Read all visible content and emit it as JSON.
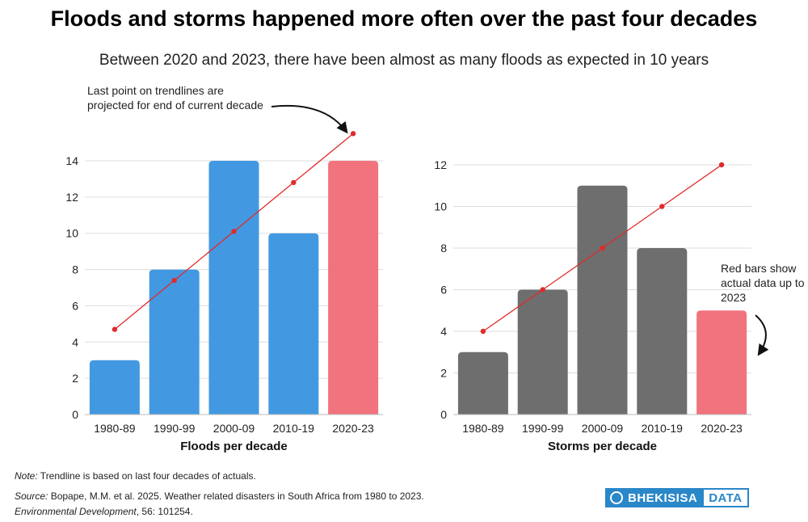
{
  "title": "Floods and storms happened more often over the past four decades",
  "subtitle": "Between 2020 and 2023, there have been almost as many floods as expected in 10 years",
  "annotations": {
    "left": "Last point on trendlines are projected for end of current decade",
    "right": "Red bars show actual data up to 2023"
  },
  "colors": {
    "floods": "#4299e1",
    "storms": "#6e6e6e",
    "partial": "#f0737e",
    "trend": "#e02b2b",
    "grid": "#dddddd"
  },
  "chart_data": [
    {
      "type": "bar",
      "xlabel": "Floods per decade",
      "categories": [
        "1980-89",
        "1990-99",
        "2000-09",
        "2010-19",
        "2020-23"
      ],
      "values": [
        3,
        8,
        14,
        10,
        14
      ],
      "trendline": [
        4.7,
        7.4,
        10.1,
        12.8,
        15.5
      ],
      "ylim": [
        0,
        14
      ],
      "yticks": [
        0,
        2,
        4,
        6,
        8,
        10,
        12,
        14
      ],
      "grid": true,
      "partial_last": true
    },
    {
      "type": "bar",
      "xlabel": "Storms per decade",
      "categories": [
        "1980-89",
        "1990-99",
        "2000-09",
        "2010-19",
        "2020-23"
      ],
      "values": [
        3,
        6,
        11,
        8,
        5
      ],
      "trendline": [
        4,
        6,
        8,
        10,
        12
      ],
      "ylim": [
        0,
        12
      ],
      "yticks": [
        0,
        2,
        4,
        6,
        8,
        10,
        12
      ],
      "grid": true,
      "partial_last": true
    }
  ],
  "footer": {
    "note_label": "Note:",
    "note_text": " Trendline is based on last four decades of actuals.",
    "source_label": "Source:",
    "source_text": " Bopape, M.M. et al. 2025. Weather related disasters in South Africa from 1980 to 2023.",
    "journal": "Environmental Development",
    "journal_rest": ",  56: 101254."
  },
  "logo": {
    "left": "BHEKISISA",
    "right": "DATA"
  }
}
